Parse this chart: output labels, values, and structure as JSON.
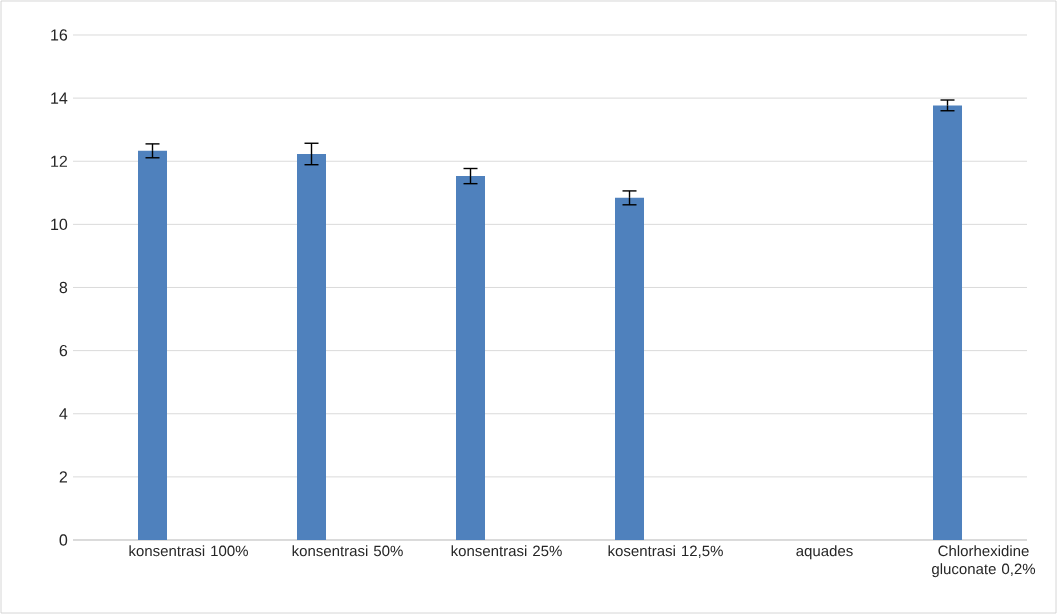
{
  "chart_data": {
    "type": "bar",
    "categories": [
      "konsentrasi 100%",
      "konsentrasi 50%",
      "konsentrasi 25%",
      "kosentrasi 12,5%",
      "aquades",
      "Chlorhexidine gluconate 0,2%"
    ],
    "values": [
      12.33,
      12.23,
      11.53,
      10.84,
      0,
      13.77
    ],
    "errors": [
      0.22,
      0.34,
      0.24,
      0.22,
      null,
      0.17
    ],
    "color": "#4f81bd",
    "ylim": [
      0,
      16
    ],
    "yticks": [
      0,
      2,
      4,
      6,
      8,
      10,
      12,
      14,
      16
    ],
    "grid": "y"
  }
}
